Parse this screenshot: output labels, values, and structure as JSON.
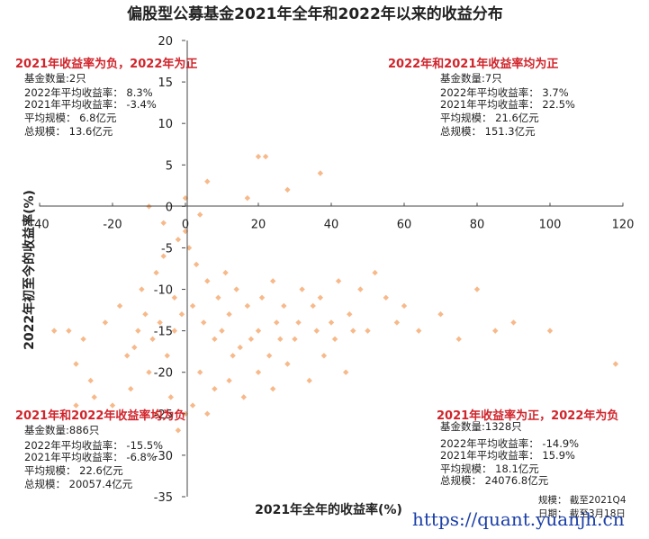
{
  "chart_data": {
    "type": "scatter",
    "title": "偏股型公募基金2021年全年和2022年以来的收益分布",
    "xlabel": "2021年全年的收益率(%)",
    "ylabel": "2022年初至今的收益率(%)",
    "xlim": [
      -40,
      120
    ],
    "ylim": [
      -35,
      20
    ],
    "xticks": [
      "-40",
      "-20",
      "0",
      "20",
      "40",
      "60",
      "80",
      "100",
      "120"
    ],
    "yticks": [
      "-35",
      "-30",
      "-25",
      "-20",
      "-15",
      "-10",
      "-5",
      "0",
      "5",
      "10",
      "15",
      "20"
    ],
    "grid": false,
    "marker_color": "#f7b98a",
    "label_color": "#d0242b",
    "series": [
      {
        "points": [
          [
            2,
            -12
          ],
          [
            5,
            -14
          ],
          [
            8,
            -16
          ],
          [
            -3,
            -15
          ],
          [
            12,
            -13
          ],
          [
            15,
            -17
          ],
          [
            20,
            -15
          ],
          [
            25,
            -14
          ],
          [
            30,
            -16
          ],
          [
            35,
            -12
          ],
          [
            40,
            -14
          ],
          [
            45,
            -13
          ],
          [
            50,
            -15
          ],
          [
            55,
            -11
          ],
          [
            60,
            -12
          ],
          [
            70,
            -13
          ],
          [
            80,
            -10
          ],
          [
            90,
            -14
          ],
          [
            100,
            -15
          ],
          [
            118,
            -19
          ],
          [
            -5,
            -18
          ],
          [
            -10,
            -20
          ],
          [
            -15,
            -22
          ],
          [
            -20,
            -24
          ],
          [
            -25,
            -23
          ],
          [
            -30,
            -19
          ],
          [
            -32,
            -15
          ],
          [
            -28,
            -16
          ],
          [
            -22,
            -14
          ],
          [
            -18,
            -12
          ],
          [
            -12,
            -10
          ],
          [
            -8,
            -8
          ],
          [
            -6,
            -6
          ],
          [
            -2,
            -4
          ],
          [
            0,
            -3
          ],
          [
            1,
            -5
          ],
          [
            3,
            -7
          ],
          [
            6,
            -9
          ],
          [
            9,
            -11
          ],
          [
            11,
            -8
          ],
          [
            14,
            -10
          ],
          [
            17,
            -12
          ],
          [
            21,
            -11
          ],
          [
            24,
            -9
          ],
          [
            27,
            -12
          ],
          [
            32,
            -10
          ],
          [
            37,
            -11
          ],
          [
            42,
            -9
          ],
          [
            48,
            -10
          ],
          [
            52,
            -8
          ],
          [
            4,
            -20
          ],
          [
            8,
            -22
          ],
          [
            12,
            -21
          ],
          [
            16,
            -23
          ],
          [
            20,
            -20
          ],
          [
            24,
            -22
          ],
          [
            28,
            -19
          ],
          [
            34,
            -21
          ],
          [
            38,
            -18
          ],
          [
            44,
            -20
          ],
          [
            -4,
            -23
          ],
          [
            -8,
            -25
          ],
          [
            -2,
            -27
          ],
          [
            0,
            -25
          ],
          [
            2,
            -24
          ],
          [
            6,
            -25
          ],
          [
            -14,
            -17
          ],
          [
            -26,
            -21
          ],
          [
            -36,
            -15
          ],
          [
            -30,
            -24
          ],
          [
            22,
            6
          ],
          [
            20,
            6
          ],
          [
            37,
            4
          ],
          [
            6,
            3
          ],
          [
            28,
            2
          ],
          [
            17,
            1
          ],
          [
            0,
            1
          ],
          [
            -6,
            -2
          ],
          [
            -10,
            0
          ],
          [
            4,
            -1
          ],
          [
            10,
            -15
          ],
          [
            13,
            -18
          ],
          [
            18,
            -16
          ],
          [
            23,
            -18
          ],
          [
            26,
            -16
          ],
          [
            31,
            -14
          ],
          [
            36,
            -15
          ],
          [
            41,
            -16
          ],
          [
            46,
            -15
          ],
          [
            58,
            -14
          ],
          [
            64,
            -15
          ],
          [
            75,
            -16
          ],
          [
            85,
            -15
          ],
          [
            -1,
            -13
          ],
          [
            -3,
            -11
          ],
          [
            -7,
            -14
          ],
          [
            -9,
            -16
          ],
          [
            -11,
            -13
          ],
          [
            -13,
            -15
          ],
          [
            -16,
            -18
          ]
        ]
      }
    ],
    "annotations": {
      "top_left": {
        "title": "2021年收益率为负，2022年为正",
        "lines": [
          "基金数量:2只",
          "2022年平均收益率：  8.3%",
          "2021年平均收益率：  -3.4%",
          "平均规模：  6.8亿元",
          "总规模：  13.6亿元"
        ]
      },
      "top_right": {
        "title": "2022年和2021年收益率均为正",
        "lines": [
          "基金数量:7只",
          "2022年平均收益率：  3.7%",
          "2021年平均收益率：  22.5%",
          "平均规模：  21.6亿元",
          "总规模：  151.3亿元"
        ]
      },
      "bottom_left": {
        "title": "2021年和2022年收益率均为负",
        "lines": [
          "基金数量:886只",
          "2022年平均收益率：  -15.5%",
          "2021年平均收益率：  -6.8%",
          "平均规模：  22.6亿元",
          "总规模：  20057.4亿元"
        ]
      },
      "bottom_right": {
        "title": "2021年收益率为正，2022年为负",
        "lines": [
          "基金数量:1328只",
          "2022年平均收益率：  -14.9%",
          "2021年平均收益率：  15.9%",
          "平均规模：  18.1亿元",
          "总规模：  24076.8亿元"
        ]
      }
    },
    "notes": [
      "规模：  截至2021Q4",
      "日期：  截至3月18日"
    ]
  },
  "watermark": "https://quant.yuanjh.cn"
}
